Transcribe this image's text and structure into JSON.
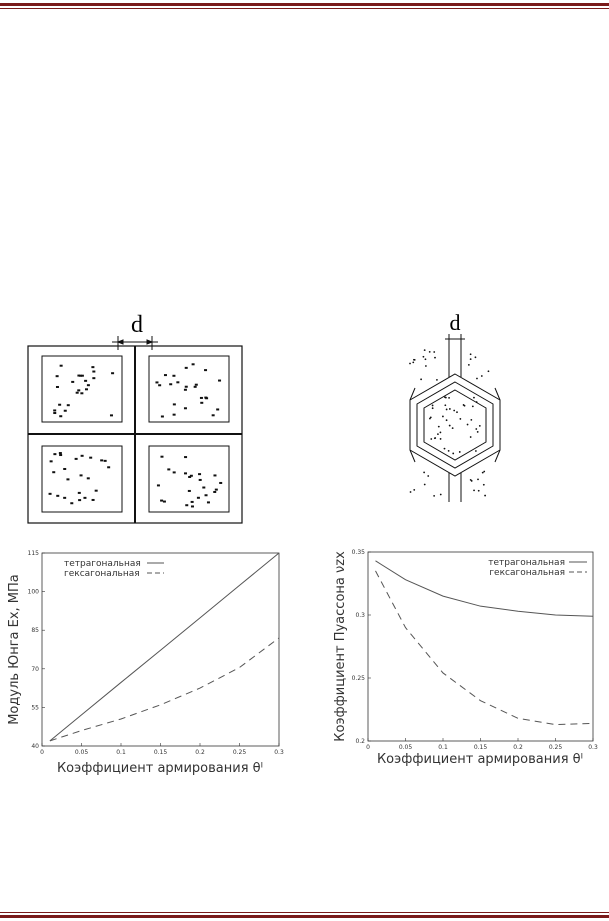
{
  "figures": {
    "left_label": "d",
    "right_label": "d"
  },
  "chart_data": [
    {
      "type": "line",
      "ylabel": "Модуль Юнга Ex, МПа",
      "xlabel": "Коэффициент армирования θᴵ",
      "x": [
        0.01,
        0.05,
        0.1,
        0.15,
        0.2,
        0.25,
        0.3
      ],
      "series": [
        {
          "name": "тетрагональная",
          "color": "#555555",
          "dash": "solid",
          "values": [
            42,
            52.1,
            64.7,
            77.2,
            89.8,
            102.4,
            115
          ]
        },
        {
          "name": "гексагональная",
          "color": "#555555",
          "dash": "dashed",
          "values": [
            42,
            46,
            50.5,
            56,
            62.5,
            70.5,
            82
          ]
        }
      ],
      "xlim": [
        0,
        0.3
      ],
      "xticks": [
        0,
        0.05,
        0.1,
        0.15,
        0.2,
        0.25,
        0.3
      ],
      "ylim": [
        40,
        115
      ],
      "yticks": [
        40,
        55,
        70,
        85,
        100,
        115
      ],
      "legend": "top-left"
    },
    {
      "type": "line",
      "ylabel": "Коэффициент Пуассона νzx",
      "xlabel": "Коэффициент армирования θᴵ",
      "x": [
        0.01,
        0.05,
        0.1,
        0.15,
        0.2,
        0.25,
        0.3
      ],
      "series": [
        {
          "name": "тетрагональная",
          "color": "#555555",
          "dash": "solid",
          "values": [
            0.343,
            0.328,
            0.315,
            0.307,
            0.303,
            0.3,
            0.299
          ]
        },
        {
          "name": "гексагональная",
          "color": "#555555",
          "dash": "dashed",
          "values": [
            0.335,
            0.29,
            0.254,
            0.232,
            0.218,
            0.213,
            0.214
          ]
        }
      ],
      "xlim": [
        0,
        0.3
      ],
      "xticks": [
        0,
        0.05,
        0.1,
        0.15,
        0.2,
        0.25,
        0.3
      ],
      "ylim": [
        0.2,
        0.35
      ],
      "yticks": [
        0.2,
        0.25,
        0.3,
        0.35
      ],
      "legend": "top-right"
    }
  ]
}
